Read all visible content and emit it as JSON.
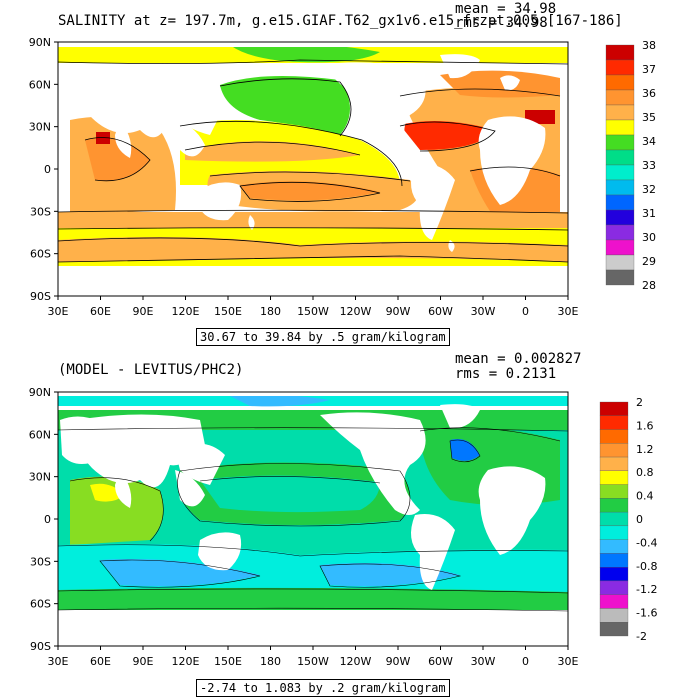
{
  "panels": [
    {
      "title": "SALINITY at z= 197.7m, g.e15.GIAF.T62_gx1v6.e15_frzpt.005 [167-186]",
      "stats": {
        "mean": "mean = 34.98",
        "rms": "rms = 34.98"
      },
      "range_note": "30.67 to 39.84 by .5 gram/kilogram",
      "colorbar": {
        "labels": [
          "38",
          "37",
          "36",
          "35",
          "34",
          "33",
          "32",
          "31",
          "30",
          "29",
          "28"
        ],
        "colors": [
          "#cc0000",
          "#ff2a00",
          "#ff6a00",
          "#ff9430",
          "#ffb14a",
          "#ffff00",
          "#44dd22",
          "#00dd88",
          "#00eecc",
          "#00bbee",
          "#0066ff",
          "#2200dd",
          "#8a2be2",
          "#ee11cc",
          "#cccccc",
          "#666666"
        ]
      }
    },
    {
      "title": "(MODEL - LEVITUS/PHC2)",
      "stats": {
        "mean": "mean = 0.002827",
        "rms": "rms = 0.2131"
      },
      "range_note": "-2.74 to 1.083 by .2 gram/kilogram",
      "colorbar": {
        "labels": [
          "2",
          "1.6",
          "1.2",
          "0.8",
          "0.4",
          "0",
          "-0.4",
          "-0.8",
          "-1.2",
          "-1.6",
          "-2"
        ],
        "colors": [
          "#cc0000",
          "#ff2a00",
          "#ff6a00",
          "#ff9430",
          "#ffb14a",
          "#ffff00",
          "#88dd22",
          "#22cc44",
          "#00ddaa",
          "#00eedd",
          "#33bbff",
          "#0077ff",
          "#0000ee",
          "#8a2be2",
          "#ee11cc",
          "#bbbbbb",
          "#666666"
        ]
      }
    }
  ],
  "axes": {
    "lat_labels": [
      "90N",
      "60N",
      "30N",
      "0",
      "30S",
      "60S",
      "90S"
    ],
    "lon_labels": [
      "30E",
      "60E",
      "90E",
      "120E",
      "150E",
      "180",
      "150W",
      "120W",
      "90W",
      "60W",
      "30W",
      "0",
      "30E"
    ]
  }
}
